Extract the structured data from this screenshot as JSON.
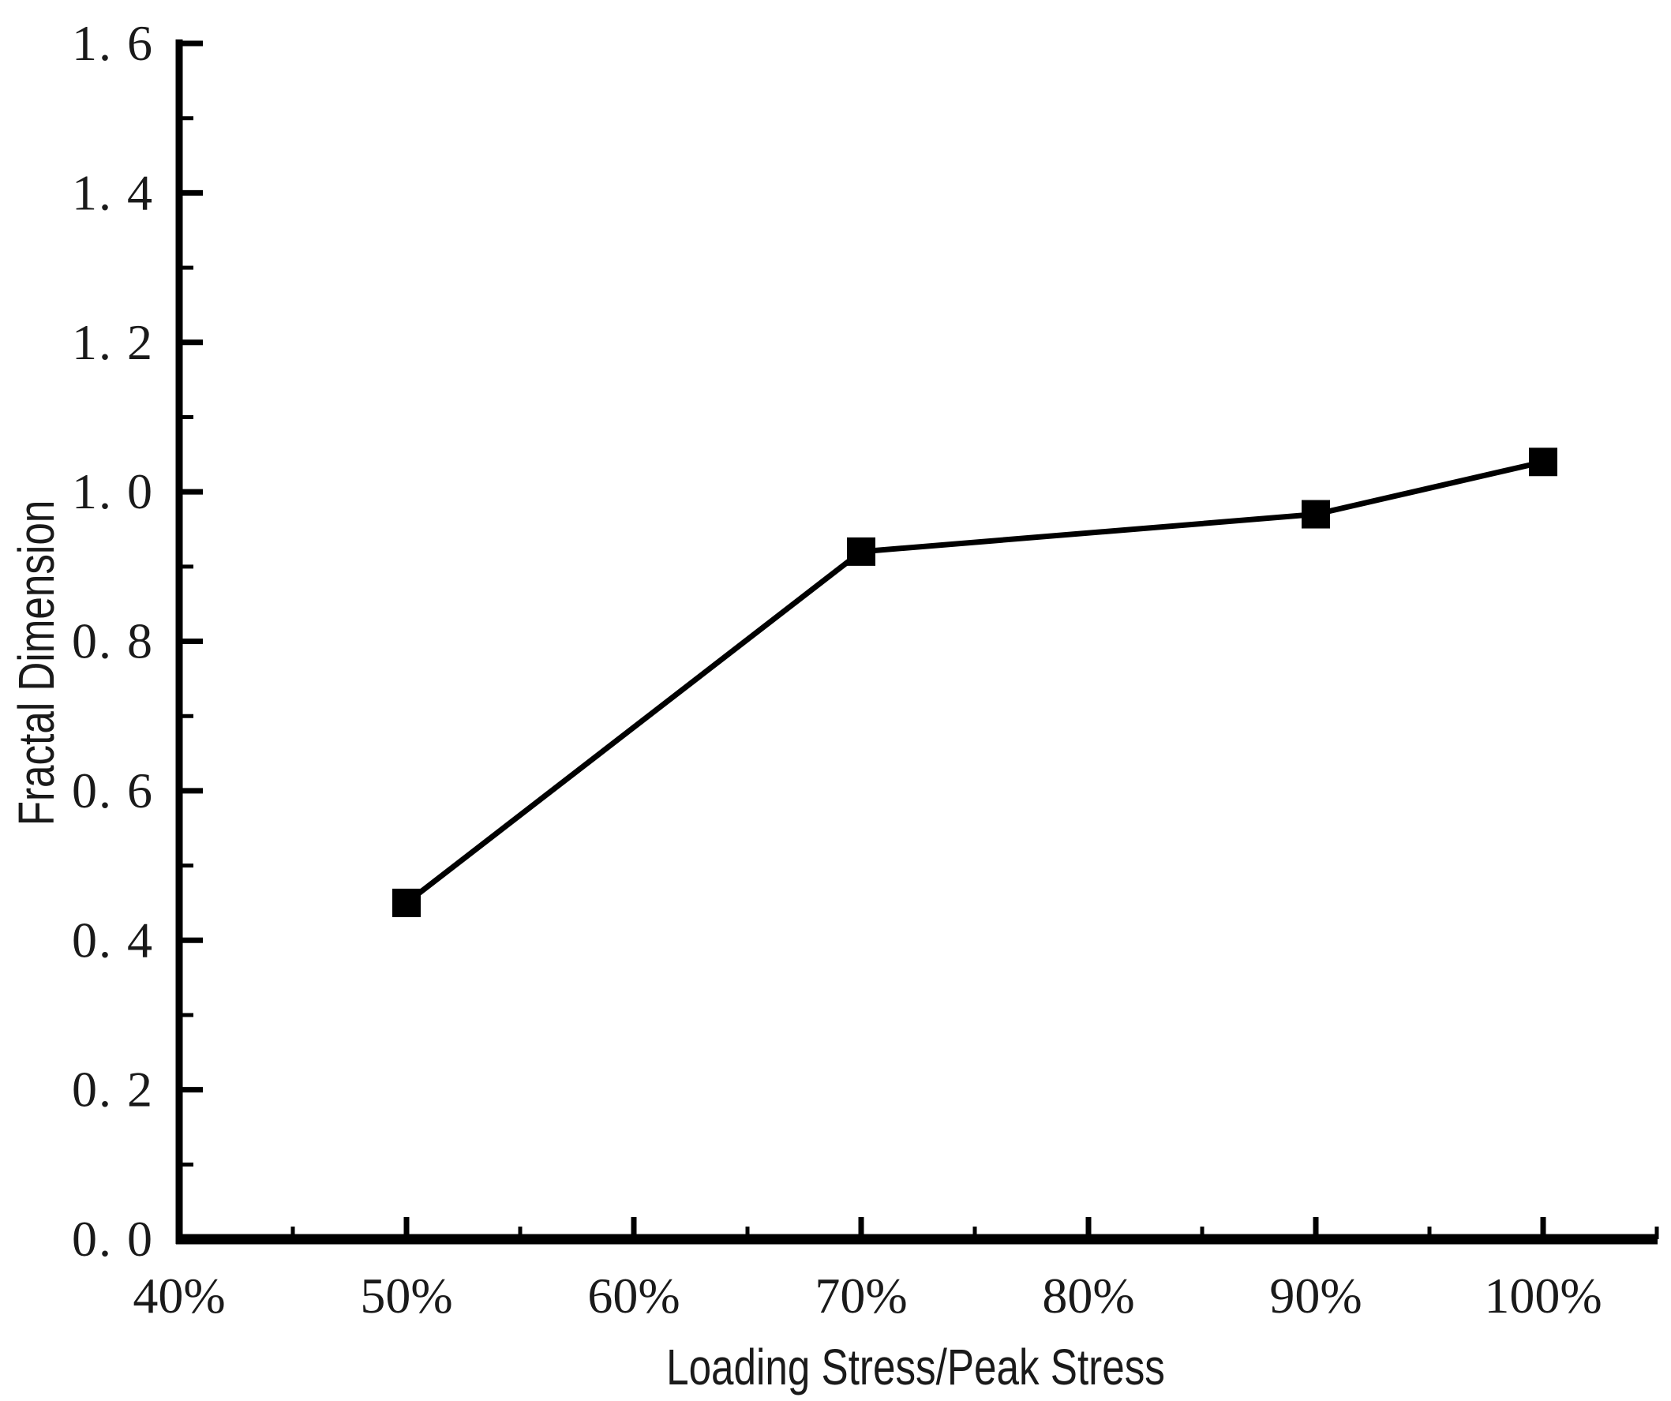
{
  "chart_data": {
    "type": "line",
    "title": "",
    "xlabel": "Loading Stress/Peak Stress",
    "ylabel": "Fractal Dimension",
    "grid": false,
    "legend": "none",
    "marker": "filled-square",
    "line_color": "#000000",
    "marker_color": "#000000",
    "text_color": "#1a1a1a",
    "xlim_pct": [
      40,
      105
    ],
    "ylim": [
      0.0,
      1.6
    ],
    "series": [
      {
        "name": "fractal-dimension-vs-loading-stress",
        "x_pct": [
          50,
          70,
          90,
          100
        ],
        "y": [
          0.45,
          0.92,
          0.97,
          1.04
        ]
      }
    ],
    "x_ticks": [
      {
        "value": 40,
        "label": "40%"
      },
      {
        "value": 50,
        "label": "50%"
      },
      {
        "value": 60,
        "label": "60%"
      },
      {
        "value": 70,
        "label": "70%"
      },
      {
        "value": 80,
        "label": "80%"
      },
      {
        "value": 90,
        "label": "90%"
      },
      {
        "value": 100,
        "label": "100%"
      }
    ],
    "x_minor_ticks": [
      45,
      55,
      65,
      75,
      85,
      95,
      105
    ],
    "y_ticks": [
      {
        "value": 0.0,
        "label": "0. 0"
      },
      {
        "value": 0.2,
        "label": "0. 2"
      },
      {
        "value": 0.4,
        "label": "0. 4"
      },
      {
        "value": 0.6,
        "label": "0. 6"
      },
      {
        "value": 0.8,
        "label": "0. 8"
      },
      {
        "value": 1.0,
        "label": "1. 0"
      },
      {
        "value": 1.2,
        "label": "1. 2"
      },
      {
        "value": 1.4,
        "label": "1. 4"
      },
      {
        "value": 1.6,
        "label": "1. 6"
      }
    ],
    "y_minor_ticks": [
      0.1,
      0.3,
      0.5,
      0.7,
      0.9,
      1.1,
      1.3,
      1.5
    ]
  }
}
